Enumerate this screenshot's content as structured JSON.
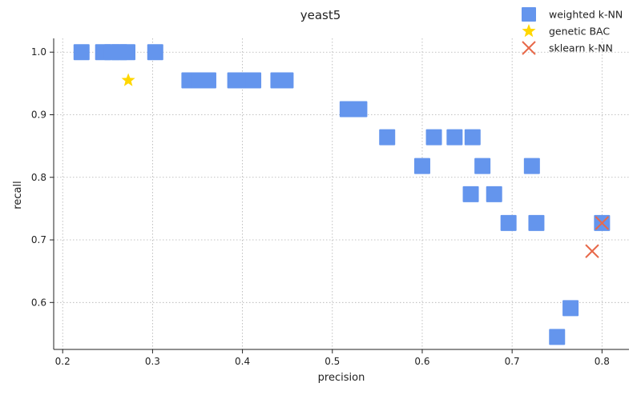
{
  "chart_data": {
    "type": "scatter",
    "title": "yeast5",
    "xlabel": "precision",
    "ylabel": "recall",
    "xlim": [
      0.19,
      0.83
    ],
    "ylim": [
      0.525,
      1.022
    ],
    "xticks": [
      "0.2",
      "0.3",
      "0.4",
      "0.5",
      "0.6",
      "0.7",
      "0.8"
    ],
    "yticks": [
      "0.6",
      "0.7",
      "0.8",
      "0.9",
      "1.0"
    ],
    "grid": true,
    "legend_position": "top-right",
    "series": [
      {
        "name": "weighted k-NN",
        "marker": "square",
        "color": "#6495ED",
        "points": [
          {
            "x": 0.221,
            "y": 1.0
          },
          {
            "x": 0.245,
            "y": 1.0
          },
          {
            "x": 0.255,
            "y": 1.0
          },
          {
            "x": 0.263,
            "y": 1.0
          },
          {
            "x": 0.272,
            "y": 1.0
          },
          {
            "x": 0.303,
            "y": 1.0
          },
          {
            "x": 0.341,
            "y": 0.955
          },
          {
            "x": 0.352,
            "y": 0.955
          },
          {
            "x": 0.362,
            "y": 0.955
          },
          {
            "x": 0.392,
            "y": 0.955
          },
          {
            "x": 0.402,
            "y": 0.955
          },
          {
            "x": 0.412,
            "y": 0.955
          },
          {
            "x": 0.44,
            "y": 0.955
          },
          {
            "x": 0.448,
            "y": 0.955
          },
          {
            "x": 0.517,
            "y": 0.909
          },
          {
            "x": 0.53,
            "y": 0.909
          },
          {
            "x": 0.561,
            "y": 0.864
          },
          {
            "x": 0.613,
            "y": 0.864
          },
          {
            "x": 0.636,
            "y": 0.864
          },
          {
            "x": 0.656,
            "y": 0.864
          },
          {
            "x": 0.6,
            "y": 0.818
          },
          {
            "x": 0.667,
            "y": 0.818
          },
          {
            "x": 0.722,
            "y": 0.818
          },
          {
            "x": 0.654,
            "y": 0.773
          },
          {
            "x": 0.68,
            "y": 0.773
          },
          {
            "x": 0.696,
            "y": 0.727
          },
          {
            "x": 0.727,
            "y": 0.727
          },
          {
            "x": 0.8,
            "y": 0.727
          },
          {
            "x": 0.765,
            "y": 0.591
          },
          {
            "x": 0.75,
            "y": 0.545
          }
        ]
      },
      {
        "name": "genetic BAC",
        "marker": "star",
        "color": "#FFD700",
        "points": [
          {
            "x": 0.273,
            "y": 0.955
          }
        ]
      },
      {
        "name": "sklearn k-NN",
        "marker": "x",
        "color": "#E8694A",
        "points": [
          {
            "x": 0.8,
            "y": 0.727
          },
          {
            "x": 0.789,
            "y": 0.682
          }
        ]
      }
    ]
  }
}
